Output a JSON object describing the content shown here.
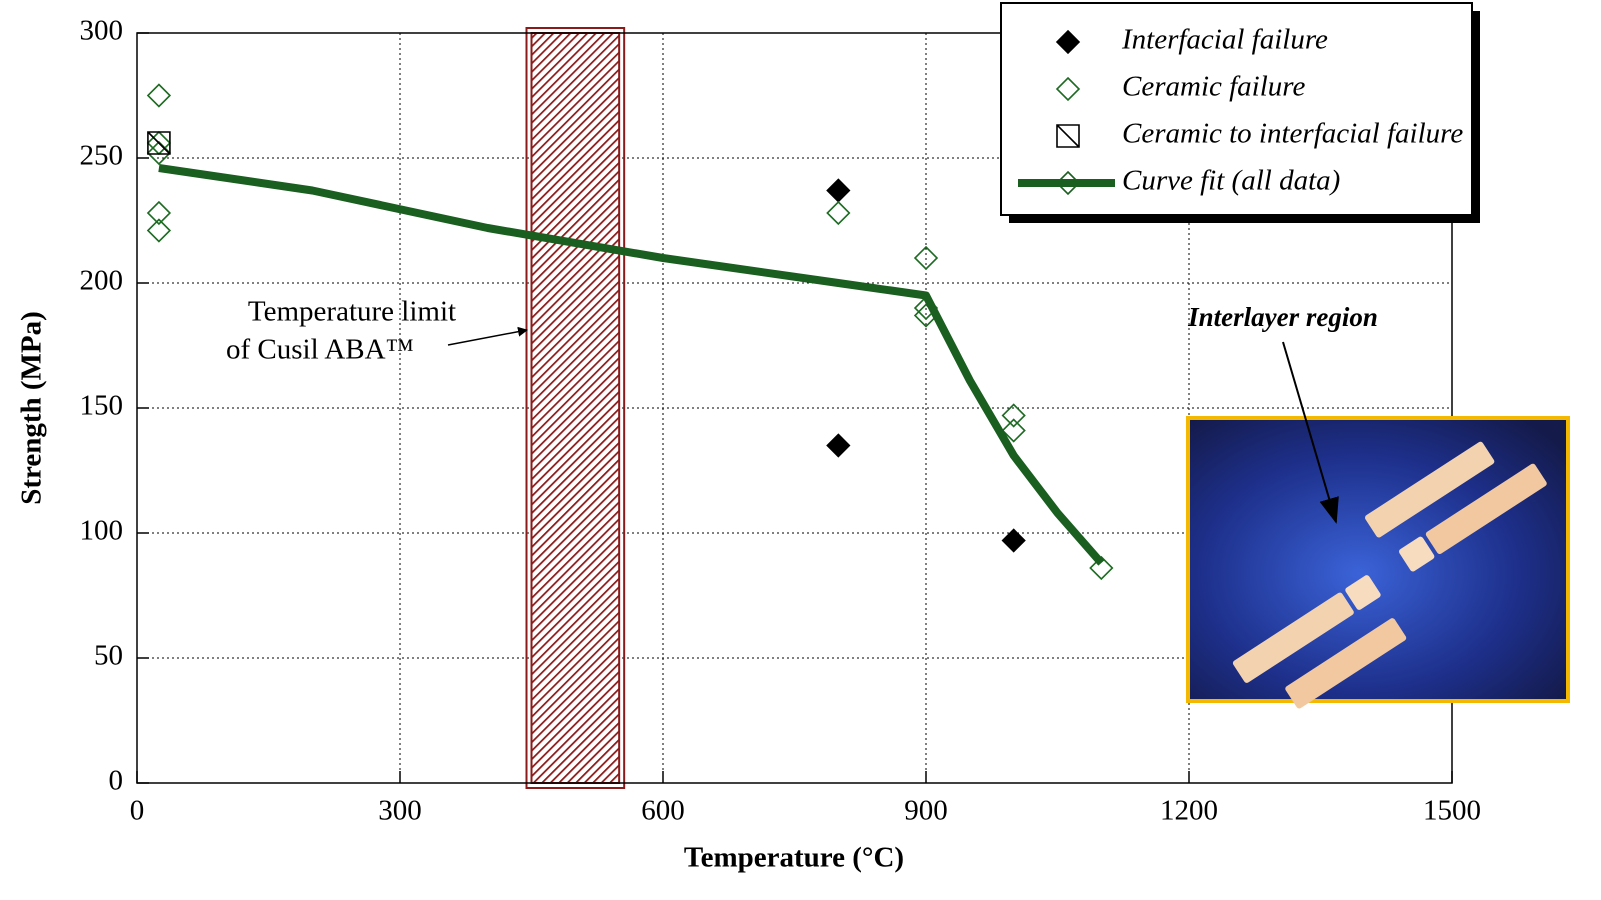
{
  "chart_data": {
    "type": "scatter",
    "xlabel": "Temperature (°C)",
    "ylabel": "Strength (MPa)",
    "xlim": [
      0,
      1500
    ],
    "ylim": [
      0,
      300
    ],
    "xticks": [
      0,
      300,
      600,
      900,
      1200,
      1500
    ],
    "yticks": [
      0,
      50,
      100,
      150,
      200,
      250,
      300
    ],
    "grid": true,
    "legend": "upper right",
    "series": [
      {
        "name": "Interfacial failure",
        "color": "#000000",
        "marker": "filled-diamond",
        "x": [
          800,
          800,
          1000
        ],
        "values": [
          237,
          135,
          97
        ]
      },
      {
        "name": "Ceramic failure",
        "color": "#1d6b22",
        "marker": "open-diamond",
        "x": [
          25,
          25,
          25,
          25,
          25,
          800,
          900,
          900,
          900,
          1000,
          1000,
          1100
        ],
        "values": [
          275,
          256,
          252,
          228,
          221,
          228,
          210,
          190,
          187,
          147,
          141,
          86
        ]
      },
      {
        "name": "Ceramic to interfacial failure",
        "color": "#000000",
        "marker": "crossed-square",
        "x": [
          25
        ],
        "values": [
          256
        ]
      },
      {
        "name": "Curve fit (all data)",
        "color": "#1a5e20",
        "type": "line",
        "x": [
          25,
          200,
          400,
          600,
          800,
          900,
          950,
          1000,
          1050,
          1100
        ],
        "values": [
          246,
          237,
          222,
          210,
          200,
          195,
          161,
          131,
          108,
          88
        ]
      }
    ],
    "band": {
      "x": [
        450,
        550
      ],
      "color": "#8b1a1a"
    },
    "annotations": [
      {
        "text": [
          "Temperature limit",
          "of Cusil ABA™"
        ]
      },
      {
        "text": "Interlayer region"
      }
    ]
  }
}
